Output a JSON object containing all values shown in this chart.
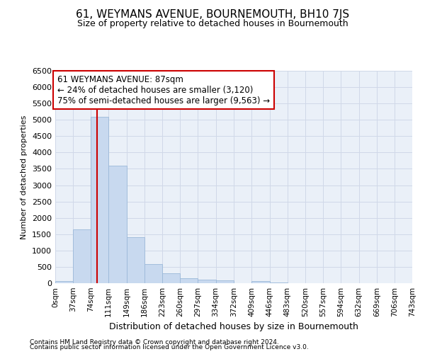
{
  "title": "61, WEYMANS AVENUE, BOURNEMOUTH, BH10 7JS",
  "subtitle": "Size of property relative to detached houses in Bournemouth",
  "xlabel": "Distribution of detached houses by size in Bournemouth",
  "ylabel": "Number of detached properties",
  "footnote1": "Contains HM Land Registry data © Crown copyright and database right 2024.",
  "footnote2": "Contains public sector information licensed under the Open Government Licence v3.0.",
  "bar_color": "#c8d9ef",
  "bar_edge_color": "#9bb8d8",
  "annotation_box_color": "#ffffff",
  "annotation_border_color": "#cc0000",
  "vline_color": "#cc0000",
  "property_size": 87,
  "annotation_line1": "61 WEYMANS AVENUE: 87sqm",
  "annotation_line2": "← 24% of detached houses are smaller (3,120)",
  "annotation_line3": "75% of semi-detached houses are larger (9,563) →",
  "bin_edges": [
    0,
    37,
    74,
    111,
    149,
    186,
    223,
    260,
    297,
    334,
    372,
    409,
    446,
    483,
    520,
    557,
    594,
    632,
    669,
    706,
    743
  ],
  "bin_labels": [
    "0sqm",
    "37sqm",
    "74sqm",
    "111sqm",
    "149sqm",
    "186sqm",
    "223sqm",
    "260sqm",
    "297sqm",
    "334sqm",
    "372sqm",
    "409sqm",
    "446sqm",
    "483sqm",
    "520sqm",
    "557sqm",
    "594sqm",
    "632sqm",
    "669sqm",
    "706sqm",
    "743sqm"
  ],
  "counts": [
    70,
    1650,
    5100,
    3600,
    1400,
    580,
    300,
    160,
    100,
    80,
    0,
    60,
    20,
    0,
    0,
    0,
    0,
    0,
    0,
    0
  ],
  "ylim": [
    0,
    6500
  ],
  "yticks": [
    0,
    500,
    1000,
    1500,
    2000,
    2500,
    3000,
    3500,
    4000,
    4500,
    5000,
    5500,
    6000,
    6500
  ],
  "grid_color": "#d0d8e8",
  "background_color": "#eaf0f8",
  "title_fontsize": 11,
  "subtitle_fontsize": 9,
  "ylabel_fontsize": 8,
  "xlabel_fontsize": 9,
  "tick_fontsize": 8,
  "xtick_fontsize": 7.5,
  "footnote_fontsize": 6.5,
  "annotation_fontsize": 8.5
}
